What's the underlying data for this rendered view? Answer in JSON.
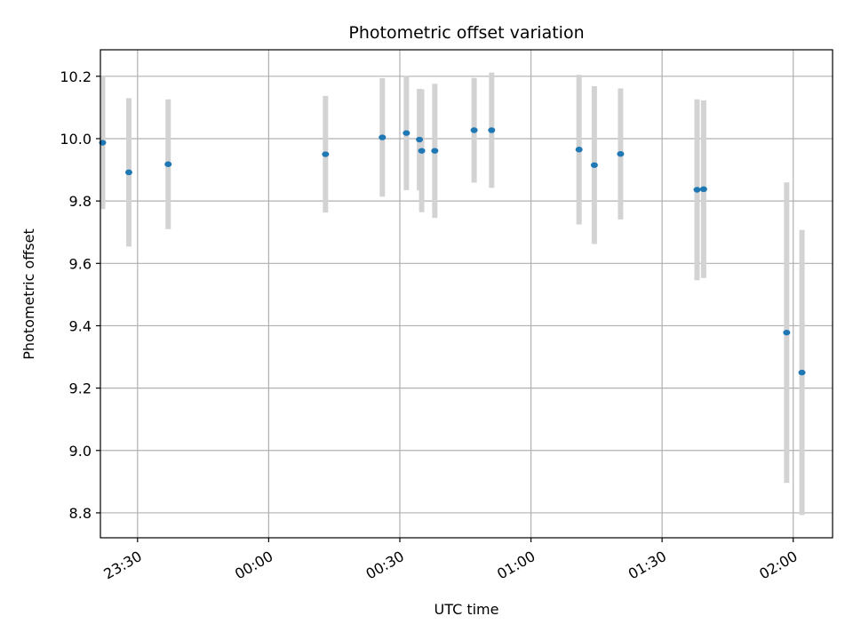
{
  "chart_data": {
    "type": "scatter",
    "title": "Photometric offset variation",
    "xlabel": "UTC time",
    "ylabel": "Photometric offset",
    "x_unit": "UTC time (HH:MM, night starting before midnight)",
    "xlim": [
      "23:21.5",
      "02:09"
    ],
    "ylim": [
      8.72,
      10.285
    ],
    "x_ticks": [
      "23:30",
      "00:00",
      "00:30",
      "01:00",
      "01:30",
      "02:00"
    ],
    "y_ticks": [
      8.8,
      9.0,
      9.2,
      9.4,
      9.6,
      9.8,
      10.0,
      10.2
    ],
    "y_tick_labels": [
      "8.8",
      "9.0",
      "9.2",
      "9.4",
      "9.6",
      "9.8",
      "10.0",
      "10.2"
    ],
    "grid": true,
    "marker_color": "#1f77b4",
    "errorbar_color": "#d3d3d3",
    "points": [
      {
        "x": "23:22",
        "y": 9.987,
        "yerr": 0.213
      },
      {
        "x": "23:28",
        "y": 9.892,
        "yerr": 0.238
      },
      {
        "x": "23:37",
        "y": 9.918,
        "yerr": 0.208
      },
      {
        "x": "00:13",
        "y": 9.95,
        "yerr": 0.187
      },
      {
        "x": "00:26",
        "y": 10.004,
        "yerr": 0.19
      },
      {
        "x": "00:31.5",
        "y": 10.018,
        "yerr": 0.183
      },
      {
        "x": "00:34.5",
        "y": 9.997,
        "yerr": 0.163
      },
      {
        "x": "00:35",
        "y": 9.961,
        "yerr": 0.197
      },
      {
        "x": "00:38",
        "y": 9.961,
        "yerr": 0.215
      },
      {
        "x": "00:47",
        "y": 10.027,
        "yerr": 0.168
      },
      {
        "x": "00:51",
        "y": 10.027,
        "yerr": 0.185
      },
      {
        "x": "01:11",
        "y": 9.965,
        "yerr": 0.24
      },
      {
        "x": "01:14.5",
        "y": 9.915,
        "yerr": 0.253
      },
      {
        "x": "01:20.5",
        "y": 9.951,
        "yerr": 0.21
      },
      {
        "x": "01:38",
        "y": 9.836,
        "yerr": 0.29
      },
      {
        "x": "01:39.5",
        "y": 9.838,
        "yerr": 0.285
      },
      {
        "x": "01:58.5",
        "y": 9.378,
        "yerr": 0.482
      },
      {
        "x": "02:02",
        "y": 9.25,
        "yerr": 0.457
      }
    ]
  }
}
